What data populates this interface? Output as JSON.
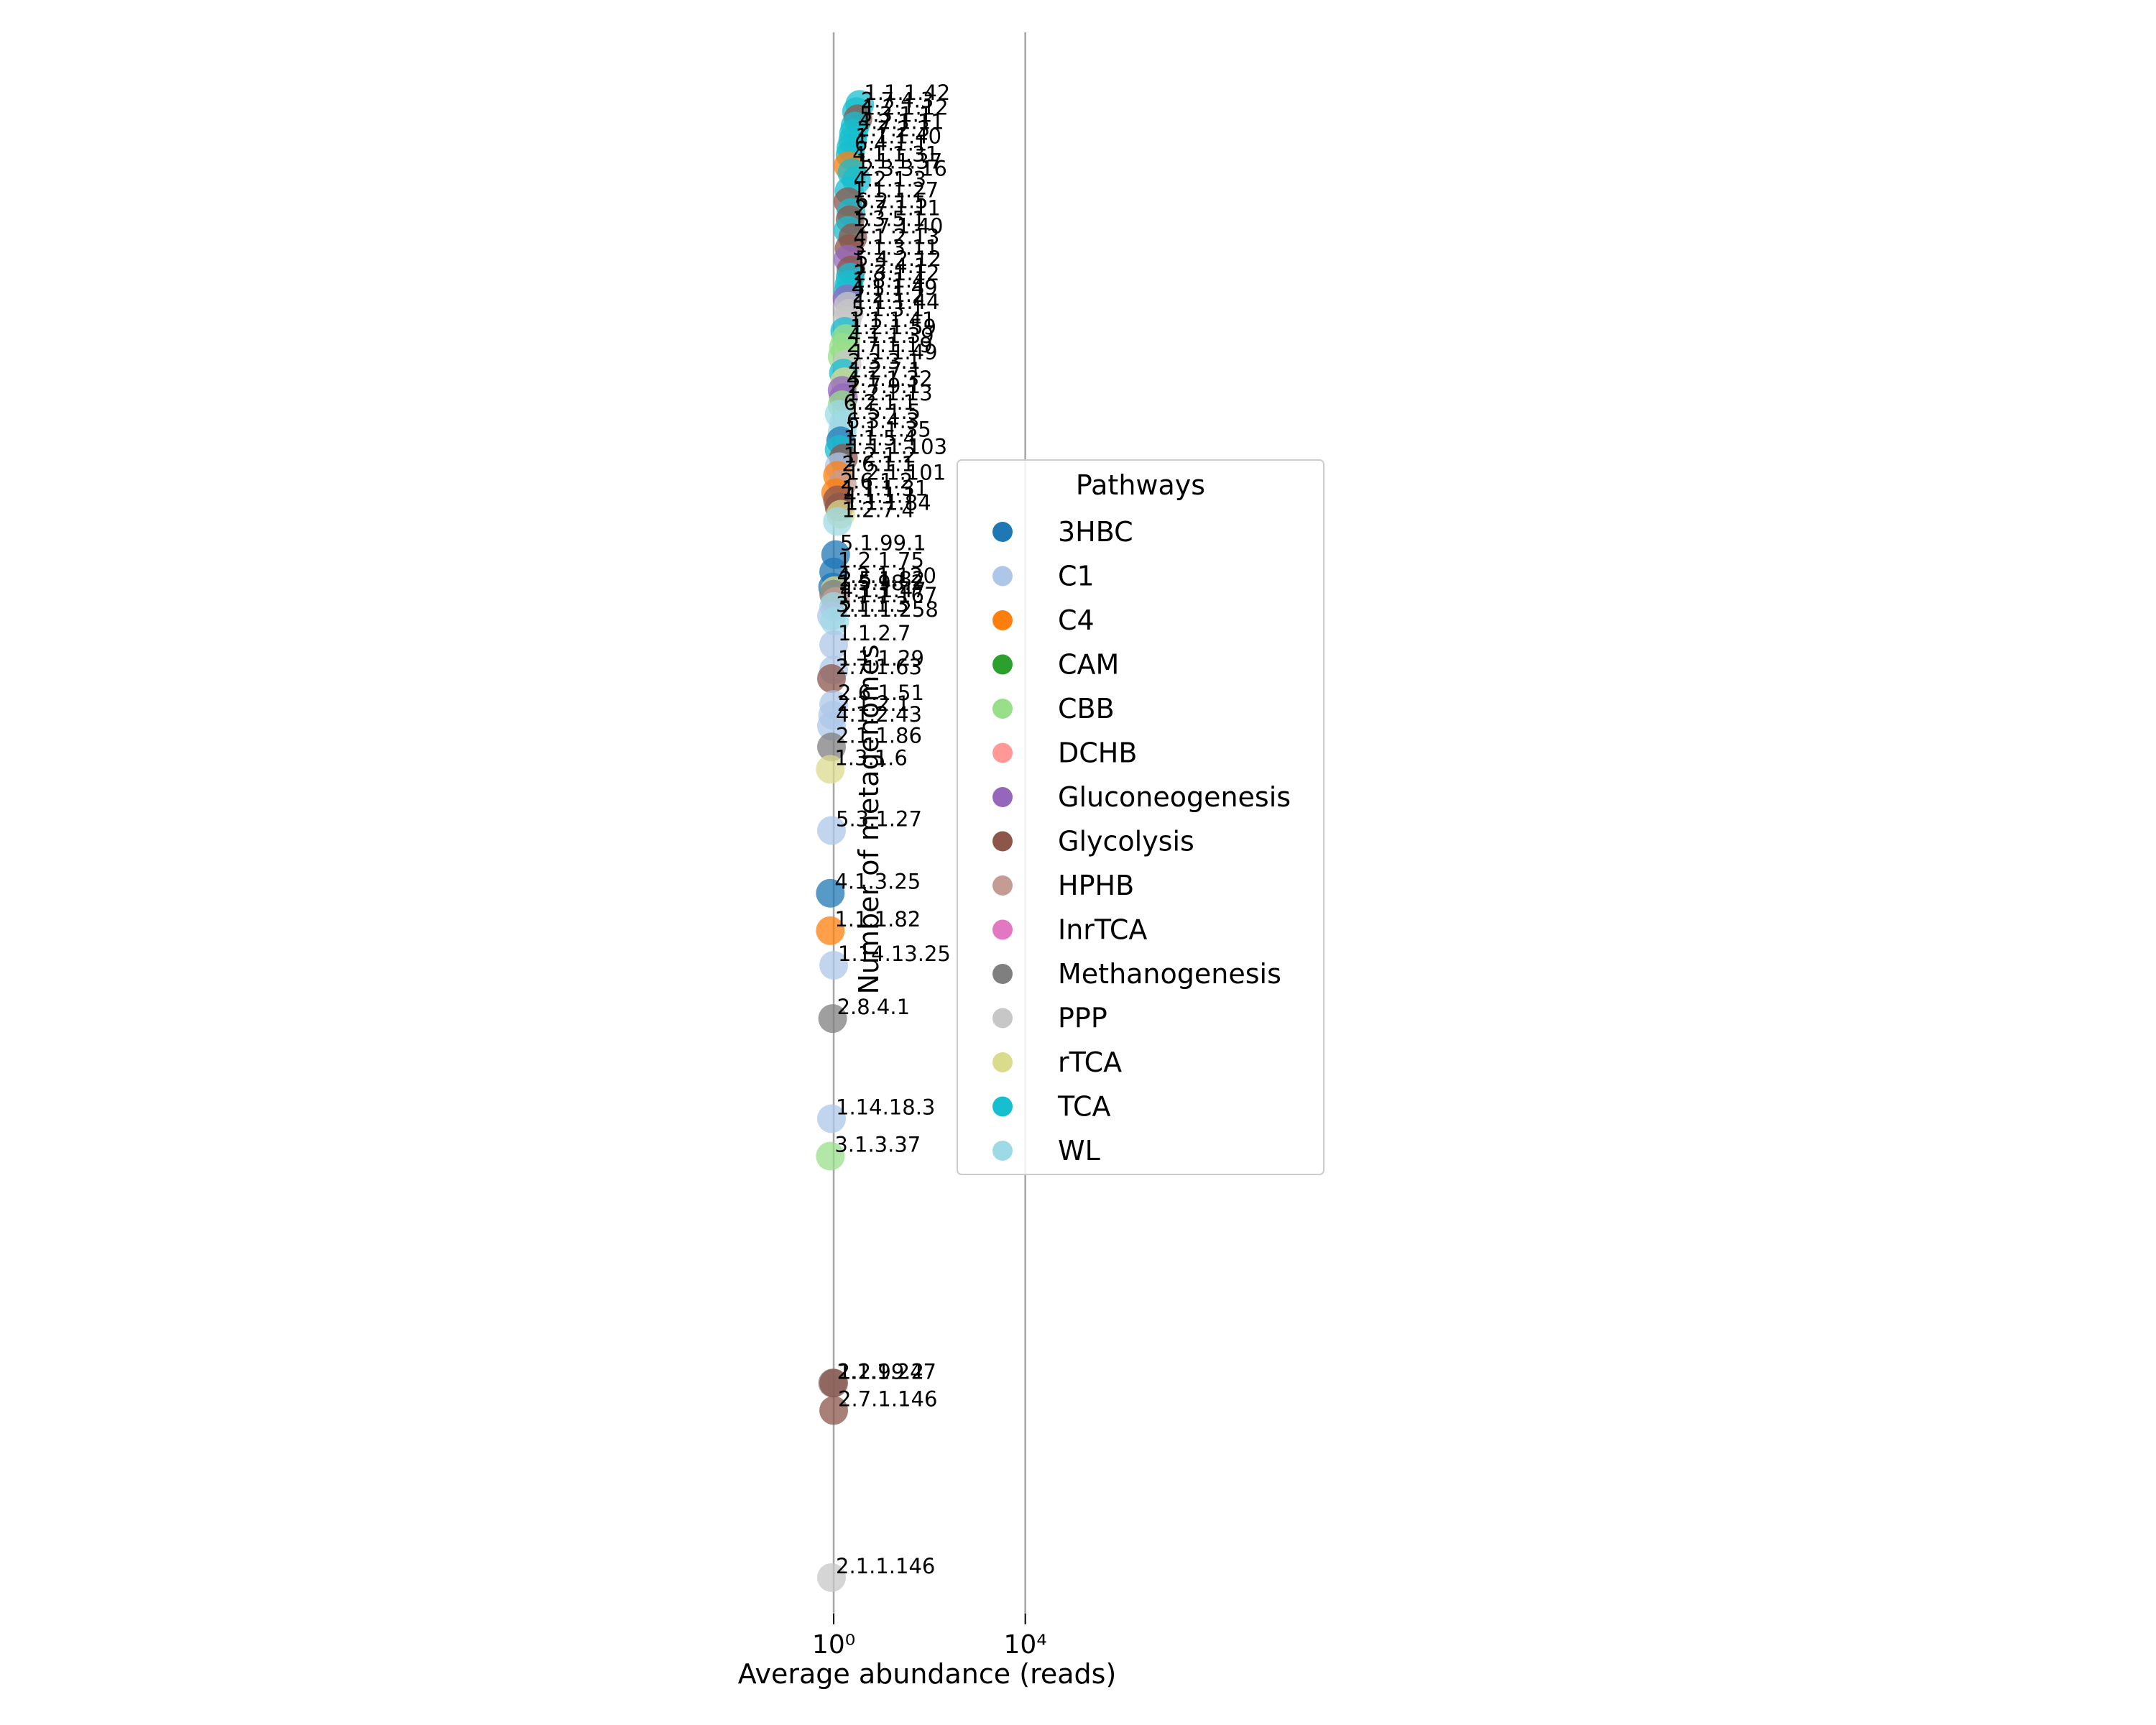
{
  "chart_data": {
    "type": "scatter",
    "title": "",
    "xlabel": "Average abundance (reads)",
    "ylabel": "Number of metagenomes",
    "xscale": "log",
    "xlim": [
      0.5,
      2000000
    ],
    "ylim": [
      0,
      2200
    ],
    "x_ticks": [
      {
        "value": 1,
        "label": "10⁰"
      },
      {
        "value": 10000,
        "label": "10⁴"
      }
    ],
    "vertical_reference_lines": [
      1,
      10000
    ],
    "grid": false,
    "legend": {
      "title": "Pathways",
      "placement": "right",
      "entries": [
        {
          "name": "3HBC",
          "color": "#1f77b4"
        },
        {
          "name": "C1",
          "color": "#aec7e8"
        },
        {
          "name": "C4",
          "color": "#ff7f0e"
        },
        {
          "name": "CAM",
          "color": "#2ca02c"
        },
        {
          "name": "CBB",
          "color": "#98df8a"
        },
        {
          "name": "DCHB",
          "color": "#ff9896"
        },
        {
          "name": "Gluconeogenesis",
          "color": "#9467bd"
        },
        {
          "name": "Glycolysis",
          "color": "#8c564b"
        },
        {
          "name": "HPHB",
          "color": "#c49c94"
        },
        {
          "name": "InrTCA",
          "color": "#e377c2"
        },
        {
          "name": "Methanogenesis",
          "color": "#7f7f7f"
        },
        {
          "name": "PPP",
          "color": "#c7c7c7"
        },
        {
          "name": "rTCA",
          "color": "#dbdb8d"
        },
        {
          "name": "TCA",
          "color": "#17becf"
        },
        {
          "name": "WL",
          "color": "#9edae5"
        }
      ]
    },
    "points": [
      {
        "label": "1.1.1.42",
        "pathway": "TCA",
        "x": 3.5,
        "y": 2095
      },
      {
        "label": "2.7.4.3",
        "pathway": "TCA",
        "x": 3.0,
        "y": 2085
      },
      {
        "label": "1.2.1.12",
        "pathway": "Glycolysis",
        "x": 3.2,
        "y": 2075
      },
      {
        "label": "5.3.1.1",
        "pathway": "TCA",
        "x": 2.8,
        "y": 2065
      },
      {
        "label": "4.2.1.11",
        "pathway": "TCA",
        "x": 2.6,
        "y": 2055
      },
      {
        "label": "2.7.2.3",
        "pathway": "TCA",
        "x": 2.5,
        "y": 2045
      },
      {
        "label": "1.1.1.40",
        "pathway": "TCA",
        "x": 2.3,
        "y": 2035
      },
      {
        "label": "6.4.1.1",
        "pathway": "TCA",
        "x": 2.2,
        "y": 2025
      },
      {
        "label": "4.1.1.31",
        "pathway": "C4",
        "x": 2.0,
        "y": 2010
      },
      {
        "label": "1.1.1.37",
        "pathway": "TCA",
        "x": 2.4,
        "y": 2000
      },
      {
        "label": "2.3.3.16",
        "pathway": "TCA",
        "x": 3.0,
        "y": 1990
      },
      {
        "label": "4.2.1.3",
        "pathway": "TCA",
        "x": 2.1,
        "y": 1975
      },
      {
        "label": "1.1.1.27",
        "pathway": "Glycolysis",
        "x": 2.0,
        "y": 1960
      },
      {
        "label": "6.2.1.5",
        "pathway": "TCA",
        "x": 2.3,
        "y": 1945
      },
      {
        "label": "2.7.1.11",
        "pathway": "Glycolysis",
        "x": 2.2,
        "y": 1935
      },
      {
        "label": "1.3.5.1",
        "pathway": "TCA",
        "x": 2.0,
        "y": 1920
      },
      {
        "label": "2.7.1.40",
        "pathway": "Glycolysis",
        "x": 2.5,
        "y": 1910
      },
      {
        "label": "4.1.2.13",
        "pathway": "Glycolysis",
        "x": 2.1,
        "y": 1895
      },
      {
        "label": "3.1.3.11",
        "pathway": "Gluconeogenesis",
        "x": 2.0,
        "y": 1880
      },
      {
        "label": "5.4.2.12",
        "pathway": "Glycolysis",
        "x": 2.3,
        "y": 1865
      },
      {
        "label": "1.2.4.1",
        "pathway": "TCA",
        "x": 2.2,
        "y": 1855
      },
      {
        "label": "2.3.1.12",
        "pathway": "TCA",
        "x": 2.1,
        "y": 1845
      },
      {
        "label": "1.8.1.4",
        "pathway": "TCA",
        "x": 2.0,
        "y": 1835
      },
      {
        "label": "4.1.1.49",
        "pathway": "Gluconeogenesis",
        "x": 1.9,
        "y": 1825
      },
      {
        "label": "2.2.1.2",
        "pathway": "PPP",
        "x": 2.0,
        "y": 1815
      },
      {
        "label": "1.1.1.44",
        "pathway": "PPP",
        "x": 2.1,
        "y": 1805
      },
      {
        "label": "5.1.3.1",
        "pathway": "PPP",
        "x": 1.9,
        "y": 1795
      },
      {
        "label": "1.1.1.41",
        "pathway": "TCA",
        "x": 1.7,
        "y": 1780
      },
      {
        "label": "1.2.1.59",
        "pathway": "CBB",
        "x": 1.8,
        "y": 1770
      },
      {
        "label": "4.1.1.39",
        "pathway": "CBB",
        "x": 1.6,
        "y": 1758
      },
      {
        "label": "2.7.1.19",
        "pathway": "CBB",
        "x": 1.5,
        "y": 1745
      },
      {
        "label": "1.1.1.49",
        "pathway": "PPP",
        "x": 1.9,
        "y": 1735
      },
      {
        "label": "2.3.3.1",
        "pathway": "TCA",
        "x": 1.6,
        "y": 1722
      },
      {
        "label": "1.2.7.1",
        "pathway": "rTCA",
        "x": 1.7,
        "y": 1710
      },
      {
        "label": "4.1.1.32",
        "pathway": "Gluconeogenesis",
        "x": 1.5,
        "y": 1698
      },
      {
        "label": "2.7.9.1",
        "pathway": "Gluconeogenesis",
        "x": 1.6,
        "y": 1688
      },
      {
        "label": "1.2.1.13",
        "pathway": "CBB",
        "x": 1.5,
        "y": 1678
      },
      {
        "label": "6.2.1.1",
        "pathway": "WL",
        "x": 1.3,
        "y": 1665
      },
      {
        "label": "1.5.1.5",
        "pathway": "WL",
        "x": 1.6,
        "y": 1652
      },
      {
        "label": "6.3.4.3",
        "pathway": "WL",
        "x": 1.5,
        "y": 1640
      },
      {
        "label": "1.1.1.35",
        "pathway": "3HBC",
        "x": 1.4,
        "y": 1628
      },
      {
        "label": "1.1.5.4",
        "pathway": "TCA",
        "x": 1.3,
        "y": 1616
      },
      {
        "label": "1.1.1.103",
        "pathway": "Glycolysis",
        "x": 1.6,
        "y": 1604
      },
      {
        "label": "1.2.1.2",
        "pathway": "C1",
        "x": 1.3,
        "y": 1592
      },
      {
        "label": "2.6.1.1",
        "pathway": "C4",
        "x": 1.2,
        "y": 1580
      },
      {
        "label": "1.2.1.101",
        "pathway": "HPHB",
        "x": 1.5,
        "y": 1568
      },
      {
        "label": "2.6.1.2",
        "pathway": "C4",
        "x": 1.1,
        "y": 1556
      },
      {
        "label": "1.1.1.31",
        "pathway": "Glycolysis",
        "x": 1.2,
        "y": 1546
      },
      {
        "label": "4.1.1.1",
        "pathway": "Glycolysis",
        "x": 1.3,
        "y": 1536
      },
      {
        "label": "1.1.1.84",
        "pathway": "rTCA",
        "x": 1.4,
        "y": 1526
      },
      {
        "label": "1.2.7.4",
        "pathway": "WL",
        "x": 1.2,
        "y": 1516
      },
      {
        "label": "5.1.99.1",
        "pathway": "3HBC",
        "x": 1.1,
        "y": 1470
      },
      {
        "label": "1.2.1.75",
        "pathway": "3HBC",
        "x": 1.0,
        "y": 1446
      },
      {
        "label": "4.2.1.120",
        "pathway": "3HBC",
        "x": 0.95,
        "y": 1425
      },
      {
        "label": "2.5.1.82",
        "pathway": "rTCA",
        "x": 1.05,
        "y": 1420
      },
      {
        "label": "1.5.98.2",
        "pathway": "Methanogenesis",
        "x": 1.0,
        "y": 1415
      },
      {
        "label": "4.1.1.47",
        "pathway": "HPHB",
        "x": 1.1,
        "y": 1405
      },
      {
        "label": "1.1.1.167",
        "pathway": "WL",
        "x": 1.0,
        "y": 1398
      },
      {
        "label": "3.1.1.3",
        "pathway": "C1",
        "x": 0.9,
        "y": 1385
      },
      {
        "label": "2.1.1.258",
        "pathway": "WL",
        "x": 1.05,
        "y": 1378
      },
      {
        "label": "1.1.2.7",
        "pathway": "C1",
        "x": 1.0,
        "y": 1345
      },
      {
        "label": "1.1.1.29",
        "pathway": "C1",
        "x": 1.0,
        "y": 1310
      },
      {
        "label": "2.7.1.63",
        "pathway": "Glycolysis",
        "x": 0.9,
        "y": 1298
      },
      {
        "label": "2.6.1.51",
        "pathway": "C1",
        "x": 1.0,
        "y": 1262
      },
      {
        "label": "2.1.2.1",
        "pathway": "C1",
        "x": 0.95,
        "y": 1247
      },
      {
        "label": "4.1.2.43",
        "pathway": "C1",
        "x": 0.9,
        "y": 1232
      },
      {
        "label": "2.1.1.86",
        "pathway": "Methanogenesis",
        "x": 0.9,
        "y": 1203
      },
      {
        "label": "1.3.1.6",
        "pathway": "rTCA",
        "x": 0.85,
        "y": 1172
      },
      {
        "label": "5.3.1.27",
        "pathway": "C1",
        "x": 0.9,
        "y": 1087
      },
      {
        "label": "4.1.3.25",
        "pathway": "3HBC",
        "x": 0.85,
        "y": 1000
      },
      {
        "label": "1.1.1.82",
        "pathway": "C4",
        "x": 0.85,
        "y": 948
      },
      {
        "label": "1.14.13.25",
        "pathway": "C1",
        "x": 1.0,
        "y": 900
      },
      {
        "label": "2.8.4.1",
        "pathway": "Methanogenesis",
        "x": 0.95,
        "y": 826
      },
      {
        "label": "1.14.18.3",
        "pathway": "C1",
        "x": 0.9,
        "y": 687
      },
      {
        "label": "3.1.3.37",
        "pathway": "CBB",
        "x": 0.85,
        "y": 635
      },
      {
        "label": "2.1.1.247",
        "pathway": "Methanogenesis",
        "x": 0.95,
        "y": 320
      },
      {
        "label": "1.2.99.2",
        "pathway": "Glycolysis",
        "x": 1.0,
        "y": 320
      },
      {
        "label": "2.7.1.146",
        "pathway": "Glycolysis",
        "x": 1.0,
        "y": 282
      },
      {
        "label": "2.1.1.146",
        "pathway": "PPP",
        "x": 0.9,
        "y": 50
      }
    ]
  }
}
